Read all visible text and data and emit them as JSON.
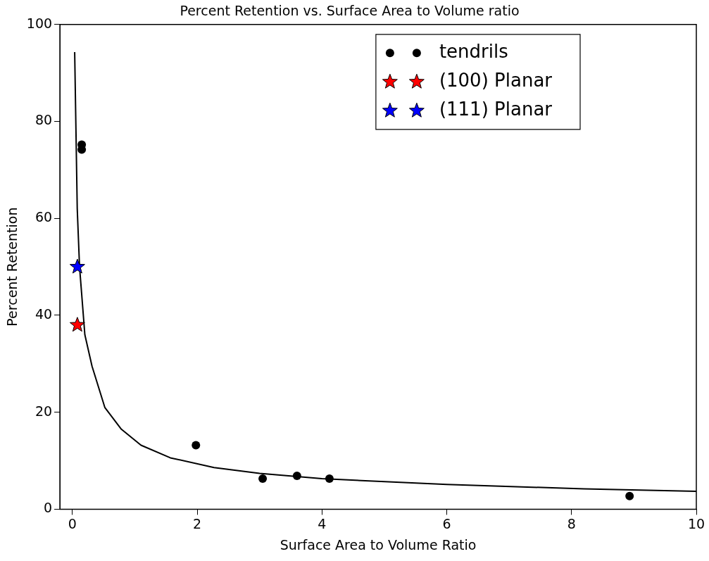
{
  "chart_data": {
    "type": "scatter",
    "title": "Percent Retention vs. Surface Area to Volume ratio",
    "xlabel": "Surface Area to Volume Ratio",
    "ylabel": "Percent Retention",
    "xlim": [
      -0.2,
      10
    ],
    "xticks": [
      0,
      2,
      4,
      6,
      8,
      10
    ],
    "ylim": [
      0,
      100
    ],
    "yticks": [
      0,
      20,
      40,
      60,
      80,
      100
    ],
    "grid": false,
    "legend": "top right",
    "series": [
      {
        "type": "line",
        "color": "#000000",
        "marker": "none",
        "line_style": "solid",
        "x": [
          0.037,
          0.078,
          0.115,
          0.2,
          0.315,
          0.52,
          0.785,
          1.1,
          1.57,
          2.27,
          3,
          4,
          6,
          8.2,
          10
        ],
        "values": [
          94.3,
          62,
          50,
          36,
          29.5,
          21,
          16.5,
          13.2,
          10.6,
          8.6,
          7.4,
          6.3,
          5.1,
          4.2,
          3.7
        ]
      },
      {
        "name": "tendrils",
        "type": "scatter",
        "color": "#000000",
        "marker": "circle",
        "x": [
          0.15,
          0.15,
          1.98,
          3.05,
          3.6,
          4.12,
          8.93
        ],
        "values": [
          75.2,
          74.2,
          13.2,
          6.3,
          6.9,
          6.3,
          2.7
        ]
      },
      {
        "name": "(100) Planar",
        "type": "scatter",
        "color": "#ff0000",
        "marker": "star",
        "x": [
          0.08
        ],
        "values": [
          38
        ]
      },
      {
        "name": "(111) Planar",
        "type": "scatter",
        "color": "#0000ff",
        "marker": "star",
        "x": [
          0.08
        ],
        "values": [
          50
        ]
      }
    ]
  }
}
